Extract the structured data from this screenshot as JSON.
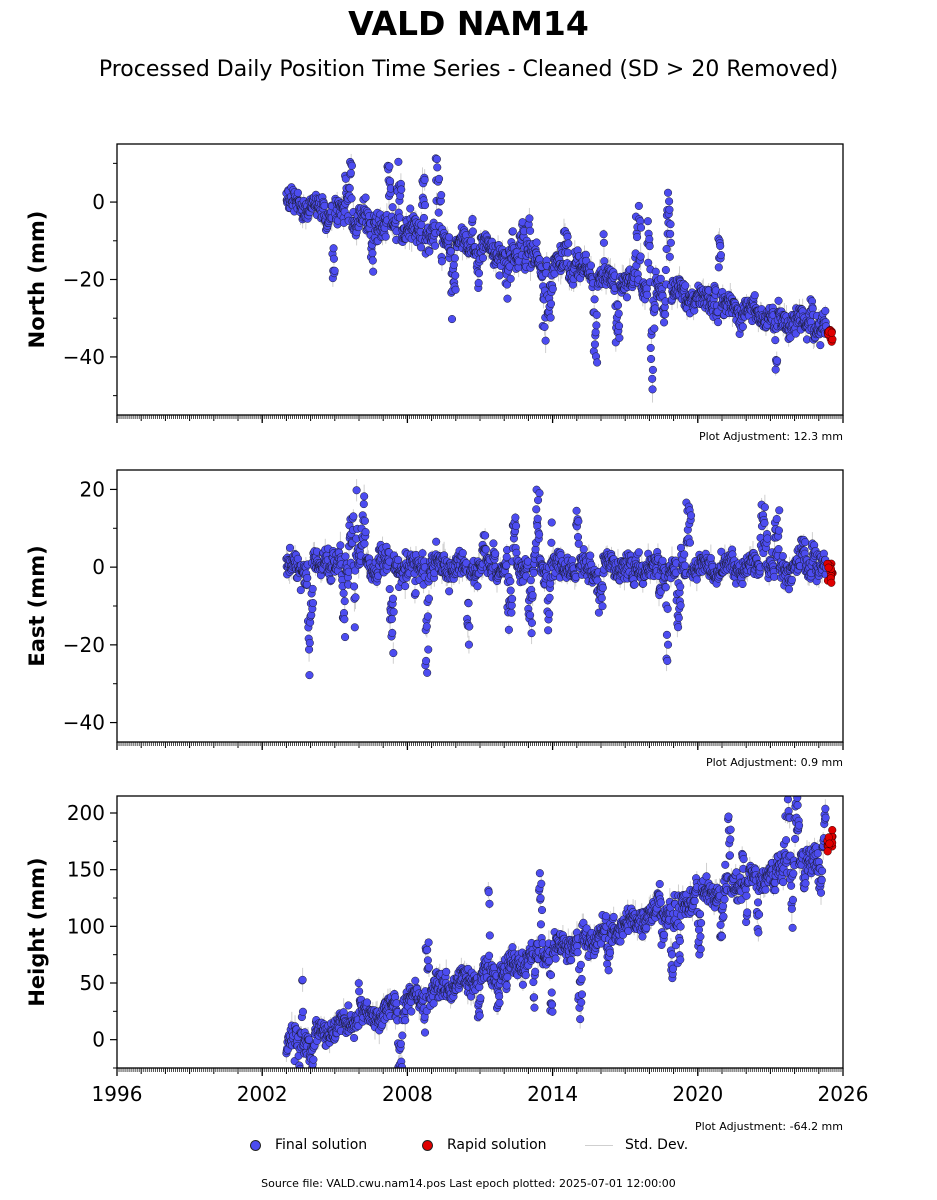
{
  "title": "VALD NAM14",
  "subtitle": "Processed Daily Position Time Series - Cleaned (SD > 20 Removed)",
  "legend": {
    "final": "Final solution",
    "rapid": "Rapid solution",
    "sd": "Std. Dev."
  },
  "footer": "Source file: VALD.cwu.nam14.pos  Last epoch plotted: 2025-07-01 12:00:00",
  "colors": {
    "final": "#4c4cf0",
    "rapid": "#e00000",
    "sd": "#cfcfcf"
  },
  "chart_data": [
    {
      "type": "scatter",
      "component": "north",
      "ylabel": "North (mm)",
      "adjustment_label": "Plot Adjustment: 12.3 mm",
      "xlim": [
        1996,
        2026
      ],
      "ylim": [
        -55,
        15
      ],
      "yticks": [
        -40,
        -20,
        0
      ],
      "x_start": 2003.0,
      "x_end": 2025.3,
      "y_start": 0,
      "y_end": -33,
      "rapid_y": -34,
      "series": [
        {
          "name": "Final solution",
          "x": [
            2003.0,
            2025.3
          ],
          "y": [
            0,
            -33
          ]
        },
        {
          "name": "Rapid solution",
          "x": [
            2025.3,
            2025.5
          ],
          "y": [
            -33,
            -36
          ]
        }
      ]
    },
    {
      "type": "scatter",
      "component": "east",
      "ylabel": "East (mm)",
      "adjustment_label": "Plot Adjustment: 0.9 mm",
      "xlim": [
        1996,
        2026
      ],
      "ylim": [
        -45,
        25
      ],
      "yticks": [
        -40,
        -20,
        0,
        20
      ],
      "x_start": 2003.0,
      "x_end": 2025.3,
      "y_start": 0,
      "y_end": 0,
      "rapid_y": -1,
      "series": [
        {
          "name": "Final solution",
          "x": [
            2003.0,
            2025.3
          ],
          "y": [
            0,
            0
          ]
        },
        {
          "name": "Rapid solution",
          "x": [
            2025.3,
            2025.5
          ],
          "y": [
            0,
            -2
          ]
        }
      ]
    },
    {
      "type": "scatter",
      "component": "height",
      "ylabel": "Height (mm)",
      "adjustment_label": "Plot Adjustment: -64.2 mm",
      "xlim": [
        1996,
        2026
      ],
      "ylim": [
        -25,
        215
      ],
      "yticks": [
        0,
        50,
        100,
        150,
        200
      ],
      "xticks": [
        1996,
        2002,
        2008,
        2014,
        2020,
        2026
      ],
      "x_start": 2003.0,
      "x_end": 2025.3,
      "y_start": -5,
      "y_end": 165,
      "rapid_y": 175,
      "series": [
        {
          "name": "Final solution",
          "x": [
            2003.0,
            2025.3
          ],
          "y": [
            -5,
            165
          ]
        },
        {
          "name": "Rapid solution",
          "x": [
            2025.3,
            2025.5
          ],
          "y": [
            168,
            180
          ]
        }
      ]
    }
  ]
}
